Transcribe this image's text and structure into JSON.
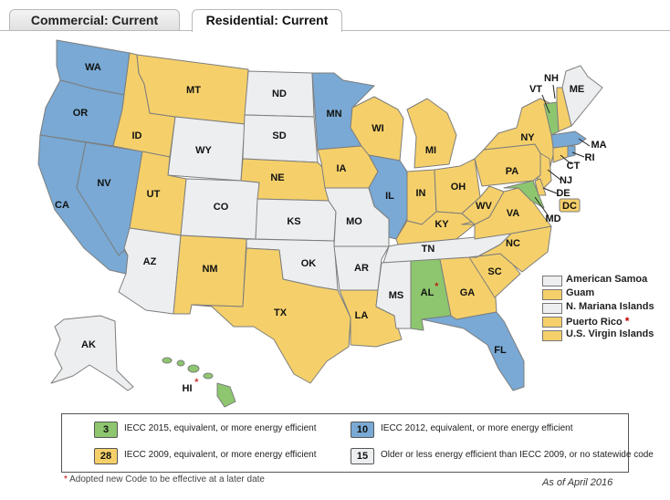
{
  "tabs": {
    "commercial": "Commercial: Current",
    "residential": "Residential: Current"
  },
  "colors": {
    "iecc2015": "#8dc66e",
    "iecc2012": "#79a9d4",
    "iecc2009": "#f5d06a",
    "older": "#eceef0",
    "border": "#7d7d7d"
  },
  "states": {
    "WA": "WA",
    "OR": "OR",
    "CA": "CA",
    "NV": "NV",
    "ID": "ID",
    "MT": "MT",
    "WY": "WY",
    "UT": "UT",
    "AZ": "AZ",
    "CO": "CO",
    "NM": "NM",
    "ND": "ND",
    "SD": "SD",
    "NE": "NE",
    "KS": "KS",
    "OK": "OK",
    "TX": "TX",
    "MN": "MN",
    "IA": "IA",
    "MO": "MO",
    "AR": "AR",
    "LA": "LA",
    "WI": "WI",
    "IL": "IL",
    "MI": "MI",
    "IN": "IN",
    "OH": "OH",
    "KY": "KY",
    "TN": "TN",
    "MS": "MS",
    "AL": "AL",
    "GA": "GA",
    "FL": "FL",
    "SC": "SC",
    "NC": "NC",
    "VA": "VA",
    "WV": "WV",
    "PA": "PA",
    "NY": "NY",
    "VT": "VT",
    "NH": "NH",
    "ME": "ME",
    "MA": "MA",
    "RI": "RI",
    "CT": "CT",
    "NJ": "NJ",
    "DE": "DE",
    "MD": "MD",
    "DC": "DC",
    "AK": "AK",
    "HI": "HI"
  },
  "star": "*",
  "territories": [
    {
      "label": "American Samoa",
      "category": "older",
      "star": ""
    },
    {
      "label": "Guam",
      "category": "iecc2009",
      "star": ""
    },
    {
      "label": "N. Mariana Islands",
      "category": "older",
      "star": ""
    },
    {
      "label": "Puerto Rico",
      "category": "iecc2009",
      "star": "*"
    },
    {
      "label": "U.S. Virgin Islands",
      "category": "iecc2009",
      "star": ""
    }
  ],
  "legend": [
    {
      "count": "3",
      "text": "IECC 2015, equivalent, or more energy efficient",
      "category": "iecc2015"
    },
    {
      "count": "10",
      "text": "IECC 2012, equivalent, or more energy efficient",
      "category": "iecc2012"
    },
    {
      "count": "28",
      "text": "IECC 2009, equivalent, or more energy efficient",
      "category": "iecc2009"
    },
    {
      "count": "15",
      "text": "Older or less energy efficient than IECC 2009, or no statewide code",
      "category": "older"
    }
  ],
  "footnote": {
    "star": "*",
    "text": "Adopted new Code to be effective at a later date"
  },
  "as_of": "As of April 2016"
}
